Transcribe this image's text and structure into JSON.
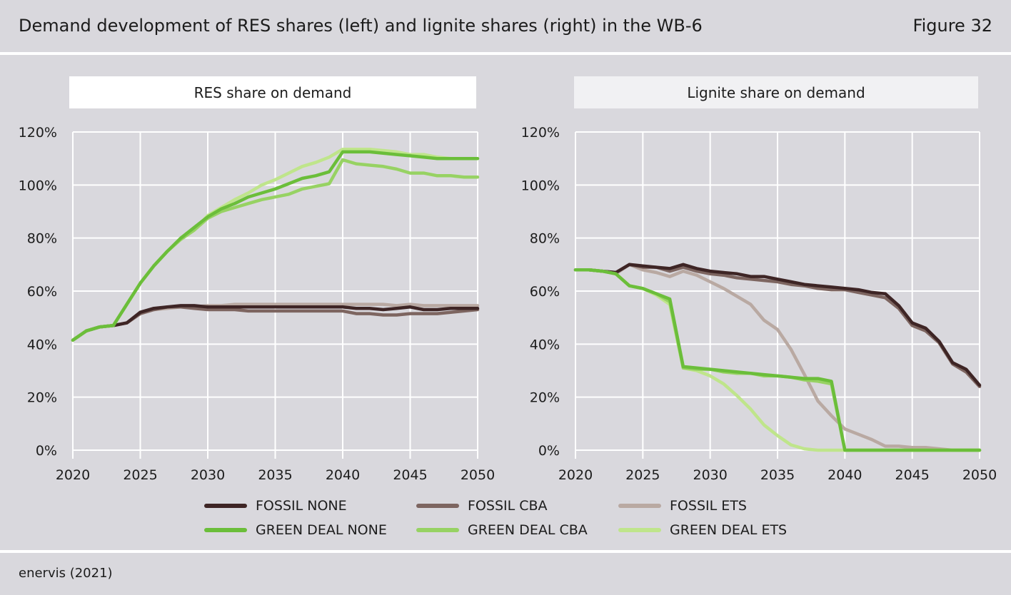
{
  "header": {
    "title": "Demand development of RES shares (left) and lignite shares (right) in the WB-6",
    "figure_label": "Figure 32"
  },
  "source": "enervis (2021)",
  "colors": {
    "fossil_none": "#3e2525",
    "fossil_cba": "#7d6560",
    "fossil_ets": "#b9a9a2",
    "green_none": "#6bbe3a",
    "green_cba": "#97d263",
    "green_ets": "#bfe58b",
    "grid": "#ffffff",
    "background": "#d9d8dd"
  },
  "legend": [
    {
      "key": "fossil_none",
      "label": "FOSSIL NONE"
    },
    {
      "key": "fossil_cba",
      "label": "FOSSIL CBA"
    },
    {
      "key": "fossil_ets",
      "label": "FOSSIL ETS"
    },
    {
      "key": "green_none",
      "label": "GREEN DEAL NONE"
    },
    {
      "key": "green_cba",
      "label": "GREEN DEAL CBA"
    },
    {
      "key": "green_ets",
      "label": "GREEN DEAL ETS"
    }
  ],
  "chart_data": [
    {
      "type": "line",
      "title": "RES share on demand",
      "xlim": [
        2020,
        2050
      ],
      "ylim": [
        0,
        120
      ],
      "xticks": [
        "2020",
        "2025",
        "2030",
        "2035",
        "2040",
        "2045",
        "2050"
      ],
      "yticks": [
        "0%",
        "20%",
        "40%",
        "60%",
        "80%",
        "100%",
        "120%"
      ],
      "grid": true,
      "x": [
        2020,
        2021,
        2022,
        2023,
        2024,
        2025,
        2026,
        2027,
        2028,
        2029,
        2030,
        2031,
        2032,
        2033,
        2034,
        2035,
        2036,
        2037,
        2038,
        2039,
        2040,
        2041,
        2042,
        2043,
        2044,
        2045,
        2046,
        2047,
        2048,
        2049,
        2050
      ],
      "series": [
        {
          "key": "fossil_none",
          "name": "FOSSIL NONE",
          "values": [
            41.5,
            45,
            46.5,
            47,
            48,
            52,
            53.5,
            54,
            54.5,
            54.5,
            54,
            54,
            54,
            54,
            54,
            54,
            54,
            54,
            54,
            54,
            54,
            53.5,
            53.5,
            53,
            53.5,
            54,
            53,
            53,
            53.5,
            53.5,
            53.5
          ]
        },
        {
          "key": "fossil_cba",
          "name": "FOSSIL CBA",
          "values": [
            41.5,
            45,
            46.5,
            47,
            48,
            51.5,
            53,
            54,
            54,
            53.5,
            53,
            53,
            53,
            52.5,
            52.5,
            52.5,
            52.5,
            52.5,
            52.5,
            52.5,
            52.5,
            51.5,
            51.5,
            51,
            51,
            51.5,
            51.5,
            51.5,
            52,
            52.5,
            53
          ]
        },
        {
          "key": "fossil_ets",
          "name": "FOSSIL ETS",
          "values": [
            41.5,
            45,
            46.5,
            47,
            48,
            51.5,
            53,
            53.5,
            54,
            54,
            54.5,
            54.5,
            55,
            55,
            55,
            55,
            55,
            55,
            55,
            55,
            55,
            55,
            55,
            55,
            54.5,
            55,
            54.5,
            54.5,
            54.5,
            54.5,
            54.5
          ]
        },
        {
          "key": "green_none",
          "name": "GREEN DEAL NONE",
          "values": [
            41.5,
            45,
            46.5,
            47,
            55,
            63,
            69.5,
            75,
            80,
            84,
            88,
            91,
            93,
            95.5,
            97,
            98.5,
            100.5,
            102.5,
            103.5,
            105,
            112.5,
            112.5,
            112.5,
            112,
            111.5,
            111,
            110.5,
            110,
            110,
            110,
            110
          ]
        },
        {
          "key": "green_cba",
          "name": "GREEN DEAL CBA",
          "values": [
            41.5,
            45,
            46.5,
            47,
            55,
            63,
            69.5,
            75,
            79.5,
            83,
            87.5,
            90,
            91.5,
            93,
            94.5,
            95.5,
            96.5,
            98.5,
            99.5,
            100.5,
            109.5,
            108,
            107.5,
            107,
            106,
            104.5,
            104.5,
            103.5,
            103.5,
            103,
            103
          ]
        },
        {
          "key": "green_ets",
          "name": "GREEN DEAL ETS",
          "values": [
            41.5,
            45,
            46.5,
            47,
            55,
            63,
            69.5,
            75,
            79.5,
            83,
            88.5,
            91.5,
            94.5,
            97,
            100,
            102,
            104.5,
            107,
            108.5,
            110.5,
            113.5,
            113.5,
            113.5,
            113,
            112.5,
            111.5,
            111.5,
            110.5,
            110,
            110,
            110
          ]
        }
      ]
    },
    {
      "type": "line",
      "title": "Lignite share on demand",
      "xlim": [
        2020,
        2050
      ],
      "ylim": [
        0,
        120
      ],
      "xticks": [
        "2020",
        "2025",
        "2030",
        "2035",
        "2040",
        "2045",
        "2050"
      ],
      "yticks": [
        "0%",
        "20%",
        "40%",
        "60%",
        "80%",
        "100%",
        "120%"
      ],
      "grid": true,
      "x": [
        2020,
        2021,
        2022,
        2023,
        2024,
        2025,
        2026,
        2027,
        2028,
        2029,
        2030,
        2031,
        2032,
        2033,
        2034,
        2035,
        2036,
        2037,
        2038,
        2039,
        2040,
        2041,
        2042,
        2043,
        2044,
        2045,
        2046,
        2047,
        2048,
        2049,
        2050
      ],
      "series": [
        {
          "key": "fossil_none",
          "name": "FOSSIL NONE",
          "values": [
            68,
            68,
            67.5,
            67,
            70,
            69.5,
            69,
            68.5,
            70,
            68.5,
            67.5,
            67,
            66.5,
            65.5,
            65.5,
            64.5,
            63.5,
            62.5,
            62,
            61.5,
            61,
            60.5,
            59.5,
            59,
            54.5,
            48,
            46,
            41,
            33,
            30.5,
            24.5
          ]
        },
        {
          "key": "fossil_cba",
          "name": "FOSSIL CBA",
          "values": [
            68,
            68,
            67.5,
            67,
            70,
            69,
            69,
            67.5,
            69,
            67.5,
            66.5,
            66,
            65,
            64.5,
            64,
            63.5,
            62.5,
            62,
            61,
            60.5,
            60.5,
            59.5,
            58.5,
            57.5,
            53.5,
            47,
            45,
            40.5,
            32.5,
            29.5,
            24
          ]
        },
        {
          "key": "fossil_ets",
          "name": "FOSSIL ETS",
          "values": [
            68,
            68,
            67.5,
            66.5,
            70,
            68,
            67,
            65.5,
            67.5,
            66,
            63.5,
            61,
            58,
            55,
            49,
            45.5,
            38,
            28.5,
            18.5,
            13,
            8,
            6,
            4,
            1.5,
            1.5,
            1,
            1,
            0.5,
            0,
            0,
            0
          ]
        },
        {
          "key": "green_none",
          "name": "GREEN DEAL NONE",
          "values": [
            68,
            68,
            67.5,
            66.5,
            62,
            61,
            59,
            57,
            31.5,
            31,
            30.5,
            30,
            29.5,
            29,
            28.5,
            28,
            27.5,
            27,
            27,
            26,
            0,
            0,
            0,
            0,
            0,
            0,
            0,
            0,
            0,
            0,
            0
          ]
        },
        {
          "key": "green_cba",
          "name": "GREEN DEAL CBA",
          "values": [
            68,
            68,
            67.5,
            66.5,
            62,
            61,
            59,
            56,
            31,
            30.5,
            30.5,
            29.5,
            29,
            29,
            28,
            28,
            27.5,
            26.5,
            26,
            25,
            0,
            0,
            0,
            0,
            0,
            0,
            0,
            0,
            0,
            0,
            0
          ]
        },
        {
          "key": "green_ets",
          "name": "GREEN DEAL ETS",
          "values": [
            68,
            68,
            67.5,
            66.5,
            62,
            61,
            58.5,
            55,
            31,
            30,
            28,
            25,
            20.5,
            15.5,
            9.5,
            5.5,
            2,
            0.5,
            0,
            0,
            0,
            0,
            0,
            0,
            0,
            0,
            0,
            0,
            0,
            0,
            0
          ]
        }
      ]
    }
  ]
}
